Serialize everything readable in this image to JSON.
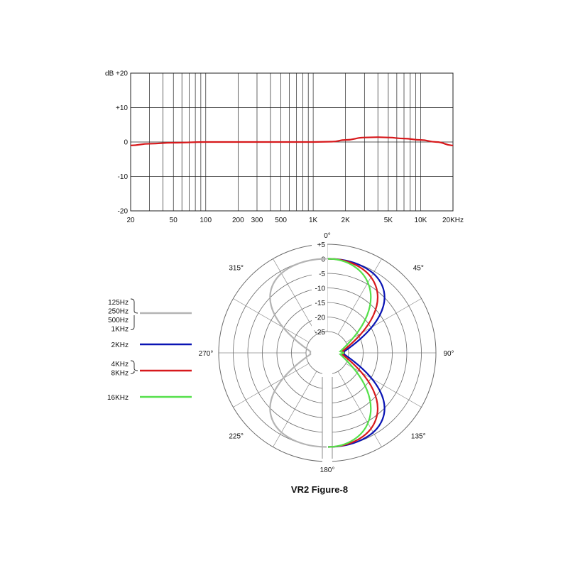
{
  "chart_data": [
    {
      "type": "line",
      "subtype": "frequency-response",
      "title": "",
      "ylabel": "dB",
      "xscale": "log",
      "xlim": [
        20,
        20000
      ],
      "ylim": [
        -20,
        20
      ],
      "grid": true,
      "x_ticks": [
        {
          "value": 20,
          "label": "20"
        },
        {
          "value": 50,
          "label": "50"
        },
        {
          "value": 100,
          "label": "100"
        },
        {
          "value": 200,
          "label": "200"
        },
        {
          "value": 300,
          "label": "300"
        },
        {
          "value": 500,
          "label": "500"
        },
        {
          "value": 1000,
          "label": "1K"
        },
        {
          "value": 2000,
          "label": "2K"
        },
        {
          "value": 5000,
          "label": "5K"
        },
        {
          "value": 10000,
          "label": "10K"
        },
        {
          "value": 20000,
          "label": "20KHz"
        }
      ],
      "y_ticks": [
        {
          "value": 20,
          "label": "dB  +20"
        },
        {
          "value": 10,
          "label": "+10"
        },
        {
          "value": 0,
          "label": "0"
        },
        {
          "value": -10,
          "label": "-10"
        },
        {
          "value": -20,
          "label": "-20"
        }
      ],
      "series": [
        {
          "color": "#d7191c",
          "x": [
            20,
            30,
            50,
            100,
            200,
            500,
            1000,
            1500,
            2000,
            3000,
            4000,
            5000,
            7000,
            10000,
            14000,
            20000
          ],
          "y": [
            -1.0,
            -0.5,
            -0.2,
            0,
            0,
            0,
            0,
            0.1,
            0.6,
            1.3,
            1.4,
            1.3,
            1.0,
            0.6,
            0.0,
            -1.0
          ]
        }
      ]
    },
    {
      "type": "polar",
      "subtype": "polar-pattern",
      "title": "VR2 Figure-8",
      "rlim": [
        -25,
        5
      ],
      "r_ticks": [
        {
          "value": 5,
          "label": "+5"
        },
        {
          "value": 0,
          "label": "0"
        },
        {
          "value": -5,
          "label": "-5"
        },
        {
          "value": -10,
          "label": "-10"
        },
        {
          "value": -15,
          "label": "-15"
        },
        {
          "value": -20,
          "label": "-20"
        },
        {
          "value": -25,
          "label": "-25"
        }
      ],
      "angle_labels": [
        {
          "angle": 0,
          "label": "0°"
        },
        {
          "angle": 45,
          "label": "45°"
        },
        {
          "angle": 90,
          "label": "90°"
        },
        {
          "angle": 135,
          "label": "135°"
        },
        {
          "angle": 180,
          "label": "180°"
        },
        {
          "angle": 225,
          "label": "225°"
        },
        {
          "angle": 270,
          "label": "270°"
        },
        {
          "angle": 315,
          "label": "315°"
        }
      ],
      "series": [
        {
          "legend_lines": [
            "125Hz",
            "250Hz",
            "500Hz",
            "1KHz"
          ],
          "color": "#b4b4b4",
          "side": "left",
          "pattern_width": 1.0
        },
        {
          "legend_lines": [
            "2KHz"
          ],
          "color": "#0a14b4",
          "side": "right",
          "pattern_width": 1.0
        },
        {
          "legend_lines": [
            "4KHz",
            "8KHz"
          ],
          "color": "#d7191c",
          "side": "right",
          "pattern_width": 0.88
        },
        {
          "legend_lines": [
            "16KHz"
          ],
          "color": "#55e04a",
          "side": "right",
          "pattern_width": 0.76
        }
      ]
    }
  ]
}
